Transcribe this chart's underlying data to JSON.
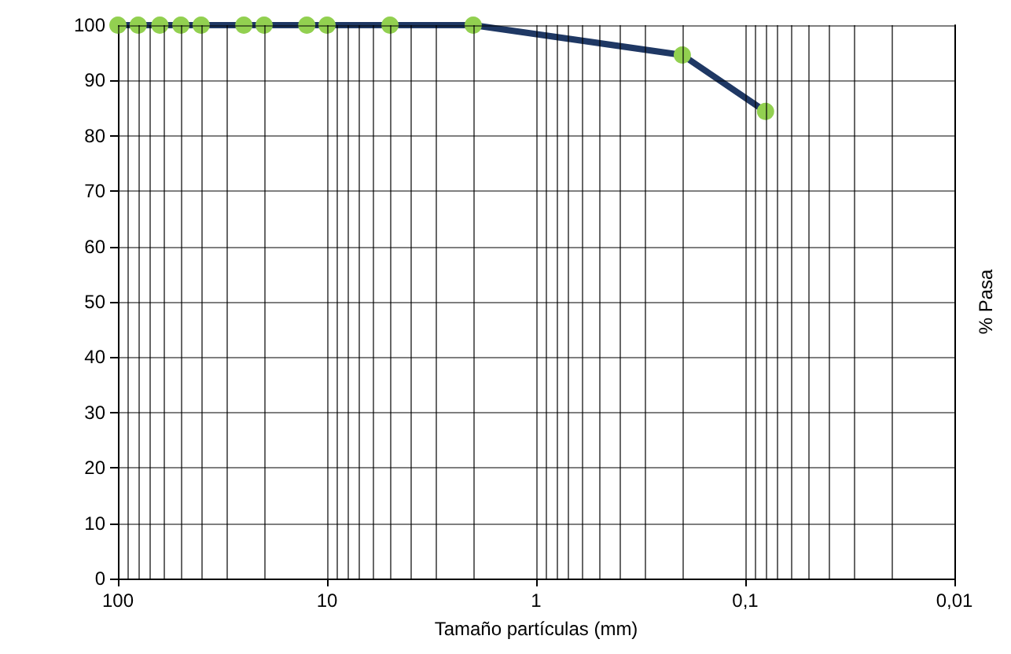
{
  "chart_data": {
    "type": "line",
    "xlabel": "Tamaño partículas (mm)",
    "ylabel": "% Pasa",
    "series": [
      {
        "color": "#1f3864",
        "values": [
          100,
          100,
          100,
          100,
          100,
          100,
          100,
          100,
          100,
          100,
          100,
          94.6,
          84.4
        ],
        "x": [
          100,
          80,
          63,
          50,
          40,
          25,
          20,
          12.5,
          10,
          5,
          2,
          0.2,
          0.08
        ],
        "colors": [
          "#92d050",
          "#92d050",
          "#92d050",
          "#92d050",
          "#92d050",
          "#92d050",
          "#92d050",
          "#92d050",
          "#92d050",
          "#92d050",
          "#92d050",
          "#92d050",
          "#92d050"
        ]
      }
    ],
    "marker": "circle",
    "log": "x",
    "grid": true,
    "xlim": [
      100,
      0.01
    ],
    "xticks": [
      {
        "value": 100,
        "label": "100"
      },
      {
        "value": 90,
        "label": null
      },
      {
        "value": 80,
        "label": null
      },
      {
        "value": 70,
        "label": null
      },
      {
        "value": 60,
        "label": null
      },
      {
        "value": 50,
        "label": null
      },
      {
        "value": 40,
        "label": null
      },
      {
        "value": 30,
        "label": null
      },
      {
        "value": 20,
        "label": null
      },
      {
        "value": 10,
        "label": "10"
      },
      {
        "value": 9,
        "label": null
      },
      {
        "value": 8,
        "label": null
      },
      {
        "value": 7,
        "label": null
      },
      {
        "value": 6,
        "label": null
      },
      {
        "value": 5,
        "label": null
      },
      {
        "value": 4,
        "label": null
      },
      {
        "value": 3,
        "label": null
      },
      {
        "value": 2,
        "label": null
      },
      {
        "value": 1,
        "label": "1"
      },
      {
        "value": 0.9,
        "label": null
      },
      {
        "value": 0.8,
        "label": null
      },
      {
        "value": 0.7,
        "label": null
      },
      {
        "value": 0.6,
        "label": null
      },
      {
        "value": 0.5,
        "label": null
      },
      {
        "value": 0.4,
        "label": null
      },
      {
        "value": 0.3,
        "label": null
      },
      {
        "value": 0.2,
        "label": null
      },
      {
        "value": 0.1,
        "label": "0,1"
      },
      {
        "value": 0.09,
        "label": null
      },
      {
        "value": 0.08,
        "label": null
      },
      {
        "value": 0.07,
        "label": null
      },
      {
        "value": 0.06,
        "label": null
      },
      {
        "value": 0.05,
        "label": null
      },
      {
        "value": 0.04,
        "label": null
      },
      {
        "value": 0.03,
        "label": null
      },
      {
        "value": 0.02,
        "label": null
      },
      {
        "value": 0.01,
        "label": "0,01"
      }
    ],
    "ylim": [
      0,
      100
    ],
    "yticks": [
      0,
      10,
      20,
      30,
      40,
      50,
      60,
      70,
      80,
      90,
      100
    ]
  }
}
